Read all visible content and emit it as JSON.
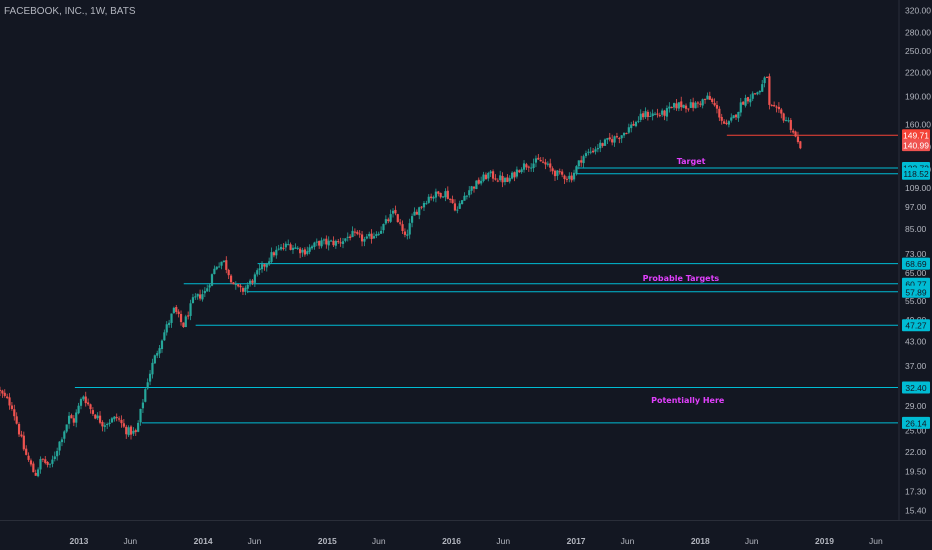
{
  "chart_data": {
    "type": "candlestick",
    "title": "FACEBOOK, INC., 1W, BATS",
    "y_scale": "log",
    "ylim": [
      14.5,
      340
    ],
    "x_range": [
      "2012-05-14",
      "2019-08-05"
    ],
    "grid": false,
    "legend": "none",
    "colors": {
      "background": "#131722",
      "axis_text": "#b2b5be",
      "up": "#26a69a",
      "down": "#ef5350",
      "level_cyan": "#00bcd4",
      "level_red": "#f44336",
      "annotation": "#e040fb"
    },
    "y_ticks": [
      "320.00",
      "280.00",
      "250.00",
      "220.00",
      "190.00",
      "160.00",
      "140.00",
      "122.00",
      "109.00",
      "97.00",
      "85.00",
      "73.00",
      "65.00",
      "55.00",
      "49.00",
      "43.00",
      "37.00",
      "33.00",
      "29.00",
      "25.00",
      "22.00",
      "19.50",
      "17.30",
      "15.40"
    ],
    "x_ticks": [
      {
        "label": "2013",
        "date": "2013-01-01",
        "bold": true
      },
      {
        "label": "Jun",
        "date": "2013-06-01"
      },
      {
        "label": "2014",
        "date": "2014-01-01",
        "bold": true
      },
      {
        "label": "Jun",
        "date": "2014-06-01"
      },
      {
        "label": "2015",
        "date": "2015-01-01",
        "bold": true
      },
      {
        "label": "Jun",
        "date": "2015-06-01"
      },
      {
        "label": "2016",
        "date": "2016-01-01",
        "bold": true
      },
      {
        "label": "Jun",
        "date": "2016-06-01"
      },
      {
        "label": "2017",
        "date": "2017-01-01",
        "bold": true
      },
      {
        "label": "Jun",
        "date": "2017-06-01"
      },
      {
        "label": "2018",
        "date": "2018-01-01",
        "bold": true
      },
      {
        "label": "Jun",
        "date": "2018-06-01"
      },
      {
        "label": "2019",
        "date": "2019-01-01",
        "bold": true
      },
      {
        "label": "Jun",
        "date": "2019-06-01"
      }
    ],
    "levels": [
      {
        "value": 149.71,
        "label": "149.71",
        "color": "red",
        "start": "2018-03-20"
      },
      {
        "value": 122.72,
        "label": "122.72",
        "color": "cyan",
        "start": "2017-01-01"
      },
      {
        "value": 118.52,
        "label": "118.52",
        "color": "cyan",
        "start": "2017-01-01"
      },
      {
        "value": 68.69,
        "label": "68.69",
        "color": "cyan",
        "start": "2014-06-10"
      },
      {
        "value": 60.77,
        "label": "60.77",
        "color": "cyan",
        "start": "2013-11-05"
      },
      {
        "value": 57.89,
        "label": "57.89",
        "color": "cyan",
        "start": "2014-05-10"
      },
      {
        "value": 47.27,
        "label": "47.27",
        "color": "cyan",
        "start": "2013-12-10"
      },
      {
        "value": 32.4,
        "label": "32.40",
        "color": "cyan",
        "start": "2012-12-20"
      },
      {
        "value": 26.14,
        "label": "26.14",
        "color": "cyan",
        "start": "2013-07-05"
      }
    ],
    "last_price": {
      "value": 140.99,
      "label": "140.99"
    },
    "annotations": [
      {
        "text": "Target",
        "date": "2017-12-05",
        "value": 128
      },
      {
        "text": "Probable Targets",
        "date": "2017-11-05",
        "value": 63
      },
      {
        "text": "Potentially Here",
        "date": "2017-11-25",
        "value": 30
      }
    ],
    "price_path": [
      [
        "2012-05-14",
        32
      ],
      [
        "2012-06-25",
        29
      ],
      [
        "2012-08-01",
        22
      ],
      [
        "2012-09-01",
        19
      ],
      [
        "2012-09-20",
        21
      ],
      [
        "2012-10-15",
        20
      ],
      [
        "2012-11-10",
        23
      ],
      [
        "2012-12-10",
        27
      ],
      [
        "2012-12-24",
        26.5
      ],
      [
        "2013-01-20",
        31
      ],
      [
        "2013-02-15",
        28
      ],
      [
        "2013-03-20",
        26
      ],
      [
        "2013-05-01",
        27
      ],
      [
        "2013-05-25",
        25
      ],
      [
        "2013-06-25",
        24.5
      ],
      [
        "2013-07-25",
        33
      ],
      [
        "2013-08-15",
        38
      ],
      [
        "2013-09-10",
        44
      ],
      [
        "2013-10-15",
        52
      ],
      [
        "2013-11-10",
        47
      ],
      [
        "2013-12-10",
        55
      ],
      [
        "2014-01-15",
        58
      ],
      [
        "2014-02-15",
        68
      ],
      [
        "2014-03-08",
        70
      ],
      [
        "2014-04-10",
        60
      ],
      [
        "2014-05-01",
        58
      ],
      [
        "2014-05-25",
        61
      ],
      [
        "2014-06-25",
        66
      ],
      [
        "2014-08-01",
        73
      ],
      [
        "2014-09-15",
        77
      ],
      [
        "2014-11-01",
        74
      ],
      [
        "2014-12-15",
        78
      ],
      [
        "2015-02-10",
        78
      ],
      [
        "2015-03-20",
        82
      ],
      [
        "2015-05-01",
        79
      ],
      [
        "2015-06-15",
        85
      ],
      [
        "2015-07-25",
        94
      ],
      [
        "2015-08-24",
        80
      ],
      [
        "2015-09-20",
        93
      ],
      [
        "2015-11-01",
        103
      ],
      [
        "2015-12-20",
        106
      ],
      [
        "2016-01-25",
        95
      ],
      [
        "2016-02-20",
        106
      ],
      [
        "2016-04-25",
        118
      ],
      [
        "2016-06-20",
        113
      ],
      [
        "2016-07-30",
        124
      ],
      [
        "2016-09-25",
        128
      ],
      [
        "2016-11-15",
        118
      ],
      [
        "2016-12-25",
        116
      ],
      [
        "2017-01-25",
        131
      ],
      [
        "2017-03-20",
        141
      ],
      [
        "2017-05-20",
        150
      ],
      [
        "2017-07-28",
        170
      ],
      [
        "2017-09-20",
        170
      ],
      [
        "2017-11-01",
        180
      ],
      [
        "2017-12-20",
        179
      ],
      [
        "2018-01-31",
        188
      ],
      [
        "2018-02-20",
        178
      ],
      [
        "2018-03-25",
        157
      ],
      [
        "2018-04-15",
        166
      ],
      [
        "2018-05-15",
        185
      ],
      [
        "2018-07-01",
        196
      ],
      [
        "2018-07-25",
        217
      ],
      [
        "2018-07-28",
        178
      ],
      [
        "2018-08-25",
        172
      ],
      [
        "2018-09-25",
        162
      ],
      [
        "2018-10-08",
        153
      ],
      [
        "2018-10-24",
        141
      ]
    ]
  }
}
